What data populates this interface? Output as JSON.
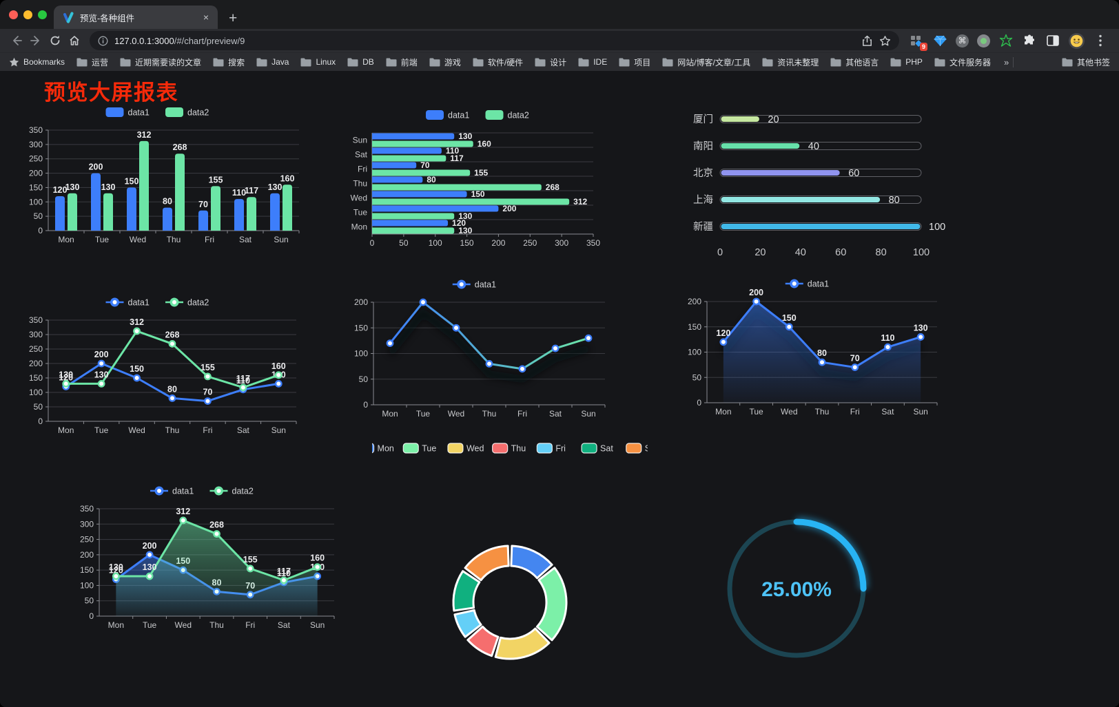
{
  "browser": {
    "traffic_lights": [
      "close",
      "minimize",
      "zoom"
    ],
    "tab": {
      "title": "预览-各种组件",
      "close_icon": "×",
      "new_tab_icon": "+"
    },
    "address": {
      "host": "127.0.0.1:3000",
      "path": "/#/chart/preview/9"
    },
    "extensions": {
      "badge": "9"
    },
    "bookmarks": {
      "star_label": "Bookmarks",
      "items": [
        "运营",
        "近期需要读的文章",
        "搜索",
        "Java",
        "Linux",
        "DB",
        "前端",
        "游戏",
        "软件/硬件",
        "设计",
        "IDE",
        "项目",
        "网站/博客/文章/工具",
        "资讯未整理",
        "其他语言",
        "PHP",
        "文件服务器"
      ],
      "overflow_icon": "»",
      "other_label": "其他书签"
    }
  },
  "page": {
    "title": "预览大屏报表",
    "title_color": "#F52A0A",
    "background": "#151619"
  },
  "chart_data": [
    {
      "id": "bar-vertical",
      "type": "bar",
      "categories": [
        "Mon",
        "Tue",
        "Wed",
        "Thu",
        "Fri",
        "Sat",
        "Sun"
      ],
      "series": [
        {
          "name": "data1",
          "color": "#3D7EFB",
          "values": [
            120,
            200,
            150,
            80,
            70,
            110,
            130
          ]
        },
        {
          "name": "data2",
          "color": "#6CE5A6",
          "values": [
            130,
            130,
            312,
            268,
            155,
            117,
            160
          ]
        }
      ],
      "ylim": [
        0,
        350
      ],
      "yticks": [
        0,
        50,
        100,
        150,
        200,
        250,
        300,
        350
      ],
      "legend_position": "top",
      "grid": true,
      "labels": true
    },
    {
      "id": "bar-horizontal",
      "type": "bar-horizontal",
      "categories": [
        "Mon",
        "Tue",
        "Wed",
        "Thu",
        "Fri",
        "Sat",
        "Sun"
      ],
      "series": [
        {
          "name": "data1",
          "color": "#3D7EFB",
          "values": [
            120,
            200,
            150,
            80,
            70,
            110,
            130
          ]
        },
        {
          "name": "data2",
          "color": "#6CE5A6",
          "values": [
            130,
            130,
            312,
            268,
            155,
            117,
            160
          ]
        }
      ],
      "xlim": [
        0,
        350
      ],
      "xticks": [
        0,
        50,
        100,
        150,
        200,
        250,
        300,
        350
      ],
      "legend_position": "top",
      "labels": true
    },
    {
      "id": "progress-bars",
      "type": "progress",
      "items": [
        {
          "label": "厦门",
          "value": 20,
          "color": "#C5E7A0"
        },
        {
          "label": "南阳",
          "value": 40,
          "color": "#67E0AA"
        },
        {
          "label": "北京",
          "value": 60,
          "color": "#9094EF"
        },
        {
          "label": "上海",
          "value": 80,
          "color": "#92E7E3"
        },
        {
          "label": "新疆",
          "value": 100,
          "color": "#41B9E9"
        }
      ],
      "xlim": [
        0,
        100
      ],
      "xticks": [
        0,
        20,
        40,
        60,
        80,
        100
      ]
    },
    {
      "id": "line-dual",
      "type": "line",
      "categories": [
        "Mon",
        "Tue",
        "Wed",
        "Thu",
        "Fri",
        "Sat",
        "Sun"
      ],
      "series": [
        {
          "name": "data1",
          "color": "#3D7EFB",
          "values": [
            120,
            200,
            150,
            80,
            70,
            110,
            130
          ]
        },
        {
          "name": "data2",
          "color": "#6CE5A6",
          "values": [
            130,
            130,
            312,
            268,
            155,
            117,
            160
          ]
        }
      ],
      "ylim": [
        0,
        350
      ],
      "yticks": [
        0,
        50,
        100,
        150,
        200,
        250,
        300,
        350
      ],
      "legend_position": "top",
      "labels": true
    },
    {
      "id": "line-gradient",
      "type": "line",
      "categories": [
        "Mon",
        "Tue",
        "Wed",
        "Thu",
        "Fri",
        "Sat",
        "Sun"
      ],
      "series": [
        {
          "name": "data1",
          "gradient": [
            "#3D7EFB",
            "#6CE5A6"
          ],
          "values": [
            120,
            200,
            150,
            80,
            70,
            110,
            130
          ]
        }
      ],
      "ylim": [
        0,
        200
      ],
      "yticks": [
        0,
        50,
        100,
        150,
        200
      ],
      "legend_position": "top",
      "labels": false,
      "shadow": true
    },
    {
      "id": "area-single",
      "type": "line",
      "categories": [
        "Mon",
        "Tue",
        "Wed",
        "Thu",
        "Fri",
        "Sat",
        "Sun"
      ],
      "series": [
        {
          "name": "data1",
          "color": "#3D7EFB",
          "values": [
            120,
            200,
            150,
            80,
            70,
            110,
            130
          ],
          "area": true
        }
      ],
      "ylim": [
        0,
        200
      ],
      "yticks": [
        0,
        50,
        100,
        150,
        200
      ],
      "legend_position": "top",
      "labels": true,
      "shadow": true
    },
    {
      "id": "area-dual",
      "type": "line",
      "categories": [
        "Mon",
        "Tue",
        "Wed",
        "Thu",
        "Fri",
        "Sat",
        "Sun"
      ],
      "series": [
        {
          "name": "data1",
          "color": "#3D7EFB",
          "values": [
            120,
            200,
            150,
            80,
            70,
            110,
            130
          ],
          "area": true
        },
        {
          "name": "data2",
          "color": "#6CE5A6",
          "values": [
            130,
            130,
            312,
            268,
            155,
            117,
            160
          ],
          "area": true
        }
      ],
      "ylim": [
        0,
        350
      ],
      "yticks": [
        0,
        50,
        100,
        150,
        200,
        250,
        300,
        350
      ],
      "legend_position": "top",
      "labels": true
    },
    {
      "id": "donut",
      "type": "pie",
      "items": [
        {
          "label": "Mon",
          "value": 120,
          "color": "#4486F0"
        },
        {
          "label": "Tue",
          "value": 200,
          "color": "#7CF0A8"
        },
        {
          "label": "Wed",
          "value": 150,
          "color": "#F2D464"
        },
        {
          "label": "Thu",
          "value": 80,
          "color": "#F56E6E"
        },
        {
          "label": "Fri",
          "value": 70,
          "color": "#64CFF7"
        },
        {
          "label": "Sat",
          "value": 110,
          "color": "#10B07F"
        },
        {
          "label": "Sun",
          "value": 130,
          "color": "#F69142"
        }
      ],
      "legend_position": "top",
      "inner_radius_ratio": 0.65
    },
    {
      "id": "gauge",
      "type": "gauge",
      "value": 25,
      "label": "25.00%",
      "progress_color": "#28B4F4",
      "track_color": "#1C4552",
      "text_color": "#4EC3F7"
    }
  ]
}
